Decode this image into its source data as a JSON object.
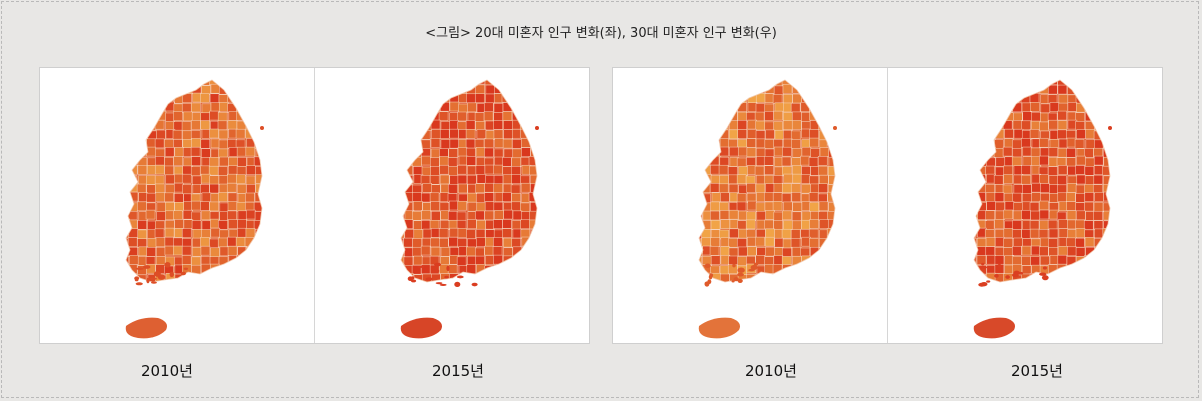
{
  "caption": "<그림> 20대 미혼자 인구 변화(좌), 30대 미혼자 인구 변화(우)",
  "colors": {
    "light": "#f1a447",
    "mid": "#e2682f",
    "dark": "#d9381e",
    "jeju_light": "#e98a44",
    "jeju_dark": "#d53d24"
  },
  "groups": [
    {
      "name": "20대 미혼자 인구 변화",
      "maps": [
        {
          "year_label": "2010년",
          "intensity": 0.55
        },
        {
          "year_label": "2015년",
          "intensity": 0.9
        }
      ]
    },
    {
      "name": "30대 미혼자 인구 변화",
      "maps": [
        {
          "year_label": "2010년",
          "intensity": 0.3
        },
        {
          "year_label": "2015년",
          "intensity": 0.85
        }
      ]
    }
  ]
}
